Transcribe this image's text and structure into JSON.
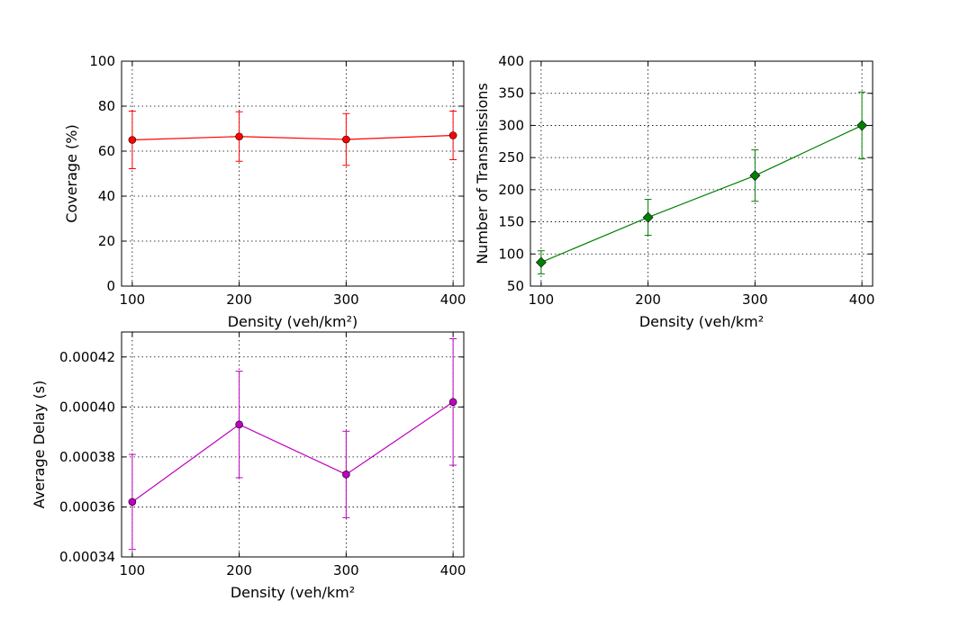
{
  "chart_data": [
    {
      "type": "line",
      "xlabel": "Density (veh/km²)",
      "ylabel": "Coverage (%)",
      "x": [
        100,
        200,
        300,
        400
      ],
      "xticks": [
        "100",
        "200",
        "300",
        "400"
      ],
      "xlim": [
        90,
        410
      ],
      "ylim": [
        0,
        100
      ],
      "yticks": [
        "0",
        "20",
        "40",
        "60",
        "80",
        "100"
      ],
      "grid": true,
      "series": [
        {
          "values": [
            65.0,
            66.5,
            65.2,
            67.0
          ],
          "errors": [
            12.8,
            11.0,
            11.5,
            10.8
          ],
          "color": "#ff0000",
          "marker": "circle"
        }
      ]
    },
    {
      "type": "line",
      "xlabel": "Density (veh/km²",
      "ylabel": "Number of Transmissions",
      "x": [
        100,
        200,
        300,
        400
      ],
      "xticks": [
        "100",
        "200",
        "300",
        "400"
      ],
      "xlim": [
        90,
        410
      ],
      "ylim": [
        50,
        400
      ],
      "yticks": [
        "50",
        "100",
        "150",
        "200",
        "250",
        "300",
        "350",
        "400"
      ],
      "grid": true,
      "series": [
        {
          "values": [
            87,
            157,
            222,
            300
          ],
          "errors": [
            18,
            28,
            40,
            52
          ],
          "color": "#008000",
          "marker": "diamond"
        }
      ]
    },
    {
      "type": "line",
      "xlabel": "Density (veh/km²",
      "ylabel": "Average Delay (s)",
      "x": [
        100,
        200,
        300,
        400
      ],
      "xticks": [
        "100",
        "200",
        "300",
        "400"
      ],
      "xlim": [
        90,
        410
      ],
      "ylim": [
        0.00034,
        0.00043
      ],
      "yticks": [
        "0.00034",
        "0.00036",
        "0.00038",
        "0.00040",
        "0.00042"
      ],
      "grid": true,
      "series": [
        {
          "values": [
            0.000362,
            0.000393,
            0.000373,
            0.000402
          ],
          "errors": [
            1.9e-05,
            2.13e-05,
            1.73e-05,
            2.53e-05
          ],
          "color": "#bf00bf",
          "marker": "circle"
        }
      ]
    }
  ]
}
